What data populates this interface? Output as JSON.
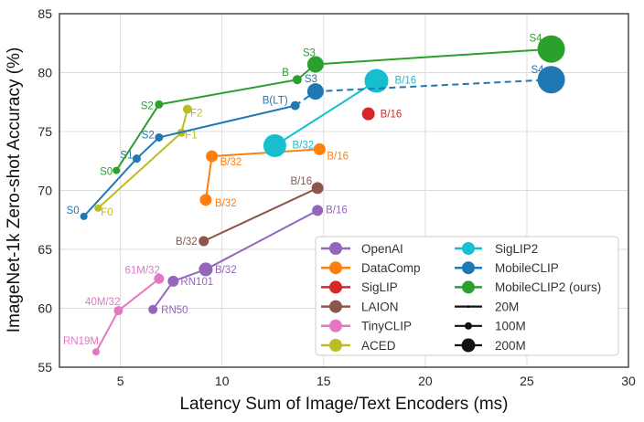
{
  "chart_data": {
    "type": "scatter",
    "title": "",
    "xlabel": "Latency Sum of Image/Text Encoders (ms)",
    "ylabel": "ImageNet-1k Zero-shot Accuracy (%)",
    "xlim": [
      2,
      30
    ],
    "ylim": [
      55,
      85
    ],
    "x_ticks": [
      5,
      10,
      15,
      20,
      25,
      30
    ],
    "y_ticks": [
      55,
      60,
      65,
      70,
      75,
      80,
      85
    ],
    "grid": true,
    "legend_position": "lower-right",
    "grid_color": "#dcdcdc",
    "spine_color": "#2e2e2e",
    "series": [
      {
        "name": "OpenAI",
        "color": "#9467bd",
        "line": "solid",
        "points": [
          {
            "label": "RN50",
            "x": 6.6,
            "y": 59.9,
            "r": 5,
            "anchor": "start",
            "dx": 9,
            "dy": 4
          },
          {
            "label": "RN101",
            "x": 7.6,
            "y": 62.3,
            "r": 6,
            "anchor": "start",
            "dx": 8,
            "dy": 4
          },
          {
            "label": "B/32",
            "x": 9.2,
            "y": 63.3,
            "r": 7.5,
            "anchor": "start",
            "dx": 10,
            "dy": 4
          },
          {
            "label": "B/16",
            "x": 14.7,
            "y": 68.3,
            "r": 6,
            "anchor": "start",
            "dx": 9,
            "dy": 3
          }
        ]
      },
      {
        "name": "DataComp",
        "color": "#ff7f0e",
        "line": "solid",
        "points": [
          {
            "label": "B/32",
            "x": 9.2,
            "y": 69.2,
            "r": 6.5,
            "anchor": "start",
            "dx": 10,
            "dy": 7
          },
          {
            "label": "B/32",
            "x": 9.5,
            "y": 72.9,
            "r": 6.5,
            "anchor": "start",
            "dx": 9,
            "dy": 10
          },
          {
            "label": "B/16",
            "x": 14.8,
            "y": 73.5,
            "r": 6.5,
            "anchor": "start",
            "dx": 8,
            "dy": 11
          }
        ]
      },
      {
        "name": "SigLIP",
        "color": "#d62728",
        "line": "none",
        "points": [
          {
            "label": "B/16",
            "x": 17.2,
            "y": 76.5,
            "r": 7,
            "anchor": "start",
            "dx": 13,
            "dy": 4
          }
        ]
      },
      {
        "name": "LAION",
        "color": "#8c564b",
        "line": "solid",
        "points": [
          {
            "label": "B/32",
            "x": 9.1,
            "y": 65.7,
            "r": 5.5,
            "anchor": "end",
            "dx": -7,
            "dy": 4
          },
          {
            "label": "B/16",
            "x": 14.7,
            "y": 70.2,
            "r": 6.5,
            "anchor": "end",
            "dx": -6,
            "dy": -4
          }
        ]
      },
      {
        "name": "TinyCLIP",
        "color": "#e377c2",
        "line": "solid",
        "points": [
          {
            "label": "RN19M",
            "x": 3.8,
            "y": 56.3,
            "r": 4,
            "anchor": "end",
            "dx": 3,
            "dy": -8
          },
          {
            "label": "40M/32",
            "x": 4.9,
            "y": 59.8,
            "r": 5,
            "anchor": "end",
            "dx": 2,
            "dy": -6
          },
          {
            "label": "61M/32",
            "x": 6.9,
            "y": 62.5,
            "r": 5.5,
            "anchor": "end",
            "dx": 1,
            "dy": -6
          }
        ]
      },
      {
        "name": "ACED",
        "color": "#bcbd22",
        "line": "solid",
        "points": [
          {
            "label": "F0",
            "x": 3.9,
            "y": 68.5,
            "r": 4,
            "anchor": "start",
            "dx": 3,
            "dy": 8
          },
          {
            "label": "F1",
            "x": 8.0,
            "y": 74.9,
            "r": 4.5,
            "anchor": "start",
            "dx": 4,
            "dy": 6
          },
          {
            "label": "F2",
            "x": 8.3,
            "y": 76.9,
            "r": 5,
            "anchor": "start",
            "dx": 3,
            "dy": 8
          }
        ]
      },
      {
        "name": "SigLIP2",
        "color": "#17becf",
        "line": "solid",
        "points": [
          {
            "label": "B/32",
            "x": 12.6,
            "y": 73.8,
            "r": 12.5,
            "anchor": "start",
            "dx": 19,
            "dy": 3
          },
          {
            "label": "B/16",
            "x": 17.6,
            "y": 79.3,
            "r": 13,
            "anchor": "start",
            "dx": 20,
            "dy": 3
          }
        ]
      },
      {
        "name": "MobileCLIP",
        "color": "#1f77b4",
        "line": "solid",
        "points": [
          {
            "label": "S0",
            "x": 3.2,
            "y": 67.8,
            "r": 4,
            "anchor": "end",
            "dx": -5,
            "dy": -3
          },
          {
            "label": "S1",
            "x": 5.8,
            "y": 72.7,
            "r": 4.5,
            "anchor": "end",
            "dx": -4,
            "dy": 0
          },
          {
            "label": "S2",
            "x": 6.9,
            "y": 74.5,
            "r": 4.5,
            "anchor": "end",
            "dx": -5,
            "dy": 1
          },
          {
            "label": "B(LT)",
            "x": 13.6,
            "y": 77.2,
            "r": 5,
            "anchor": "end",
            "dx": -8,
            "dy": -2
          },
          {
            "label": "S3",
            "x": 14.6,
            "y": 78.4,
            "r": 9,
            "anchor": "end",
            "dx": 2,
            "dy": -10,
            "dash_from_prev": true
          },
          {
            "label": "S4",
            "x": 26.2,
            "y": 79.4,
            "r": 15,
            "anchor": "end",
            "dx": -8,
            "dy": -7,
            "dash_from_prev": true
          }
        ]
      },
      {
        "name": "MobileCLIP2 (ours)",
        "color": "#2ca02c",
        "line": "solid",
        "points": [
          {
            "label": "S0",
            "x": 4.8,
            "y": 71.7,
            "r": 4,
            "anchor": "end",
            "dx": -4,
            "dy": 5
          },
          {
            "label": "S2",
            "x": 6.9,
            "y": 77.3,
            "r": 4.5,
            "anchor": "end",
            "dx": -6,
            "dy": 5
          },
          {
            "label": "B",
            "x": 13.7,
            "y": 79.4,
            "r": 5,
            "anchor": "end",
            "dx": -9,
            "dy": -4
          },
          {
            "label": "S3",
            "x": 14.6,
            "y": 80.7,
            "r": 9,
            "anchor": "end",
            "dx": 0,
            "dy": -9
          },
          {
            "label": "S4",
            "x": 26.2,
            "y": 82.0,
            "r": 15,
            "anchor": "end",
            "dx": -10,
            "dy": -8
          }
        ]
      }
    ],
    "size_legend": [
      {
        "label": "20M",
        "radius": 1.5
      },
      {
        "label": "100M",
        "radius": 4
      },
      {
        "label": "200M",
        "radius": 7.5
      }
    ]
  }
}
